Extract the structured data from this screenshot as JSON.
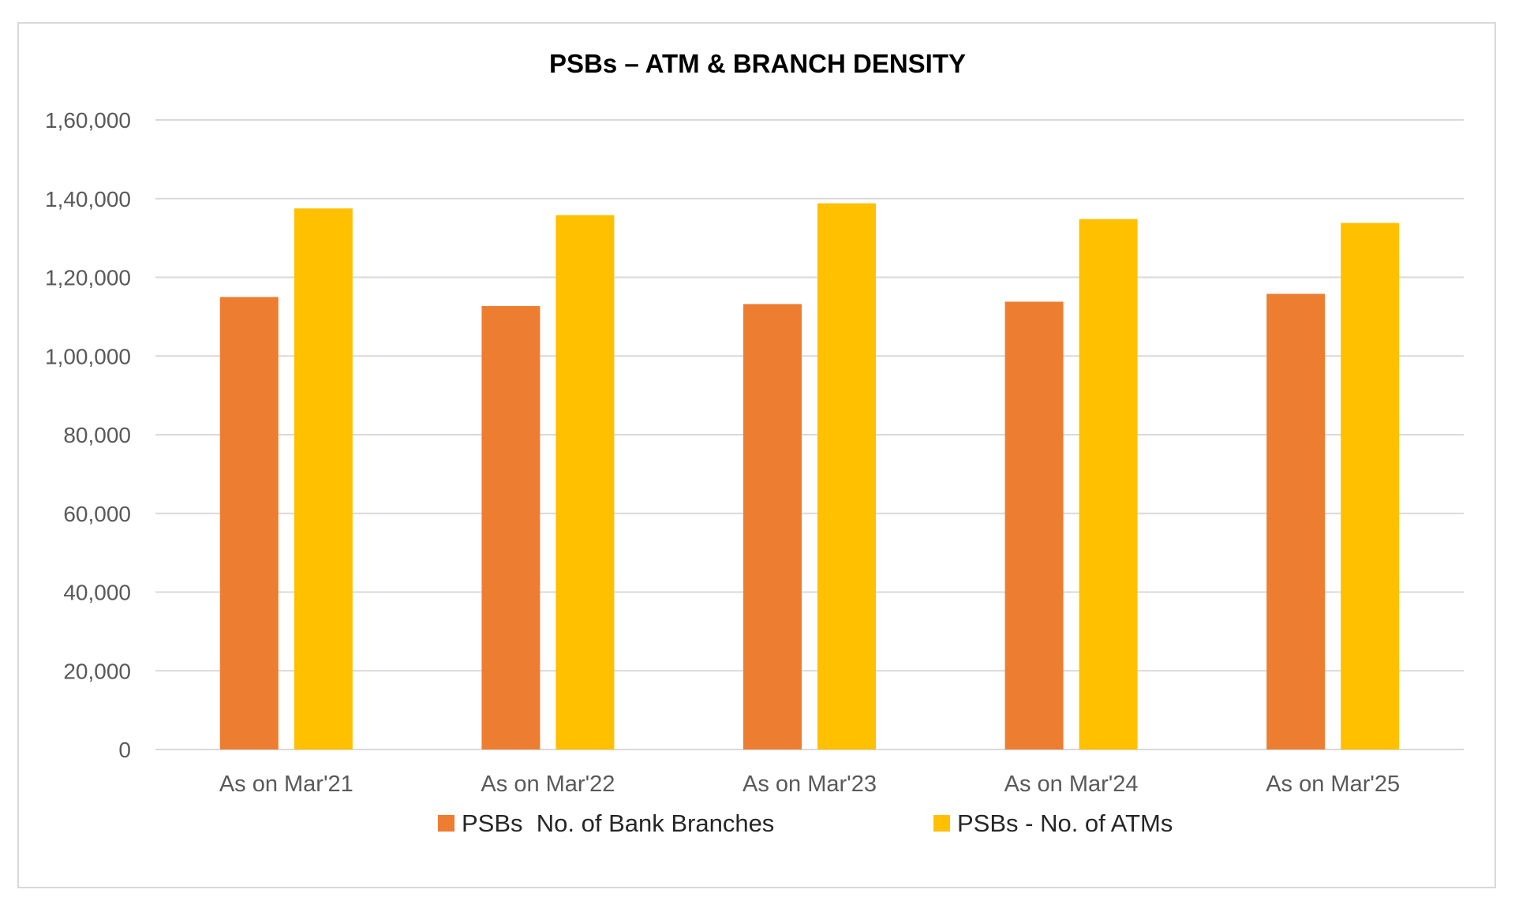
{
  "chart_data": {
    "type": "bar",
    "title": "PSBs – ATM & BRANCH DENSITY",
    "xlabel": "",
    "ylabel": "",
    "categories": [
      "As on Mar'21",
      "As on Mar'22",
      "As on Mar'23",
      "As on Mar'24",
      "As on Mar'25"
    ],
    "series": [
      {
        "name": "PSBs  No. of Bank Branches",
        "color": "#ED7D31",
        "values": [
          115000,
          112700,
          113200,
          113800,
          115800
        ]
      },
      {
        "name": "PSBs - No. of ATMs",
        "color": "#FFC000",
        "values": [
          137500,
          135800,
          138800,
          134800,
          133800
        ]
      }
    ],
    "ylim": [
      0,
      160000
    ],
    "yticks": [
      {
        "value": 0,
        "label": "0"
      },
      {
        "value": 20000,
        "label": "20,000"
      },
      {
        "value": 40000,
        "label": "40,000"
      },
      {
        "value": 60000,
        "label": "60,000"
      },
      {
        "value": 80000,
        "label": "80,000"
      },
      {
        "value": 100000,
        "label": "1,00,000"
      },
      {
        "value": 120000,
        "label": "1,20,000"
      },
      {
        "value": 140000,
        "label": "1,40,000"
      },
      {
        "value": 160000,
        "label": "1,60,000"
      }
    ],
    "grid": true,
    "legend_position": "bottom"
  }
}
